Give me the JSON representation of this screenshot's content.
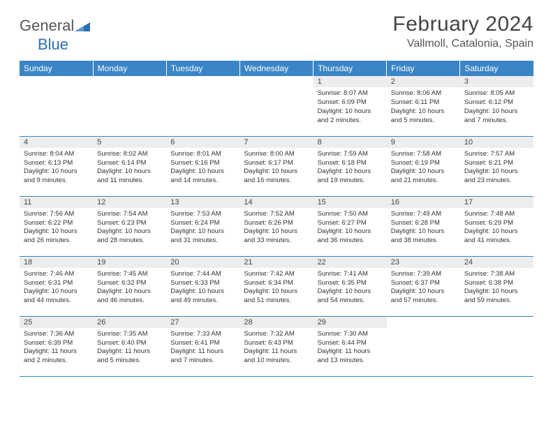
{
  "brand": {
    "part1": "General",
    "part2": "Blue"
  },
  "header": {
    "title": "February 2024",
    "location": "Vallmoll, Catalonia, Spain"
  },
  "colors": {
    "header_bg": "#3a85c6",
    "header_fg": "#ffffff",
    "daybar_bg": "#ededed",
    "row_border": "#3a85c6",
    "brand_gray": "#6b6b6b",
    "brand_blue": "#2f6fad"
  },
  "day_labels": [
    "Sunday",
    "Monday",
    "Tuesday",
    "Wednesday",
    "Thursday",
    "Friday",
    "Saturday"
  ],
  "weeks": [
    [
      null,
      null,
      null,
      null,
      {
        "n": "1",
        "sr": "Sunrise: 8:07 AM",
        "ss": "Sunset: 6:09 PM",
        "dl": "Daylight: 10 hours and 2 minutes."
      },
      {
        "n": "2",
        "sr": "Sunrise: 8:06 AM",
        "ss": "Sunset: 6:11 PM",
        "dl": "Daylight: 10 hours and 5 minutes."
      },
      {
        "n": "3",
        "sr": "Sunrise: 8:05 AM",
        "ss": "Sunset: 6:12 PM",
        "dl": "Daylight: 10 hours and 7 minutes."
      }
    ],
    [
      {
        "n": "4",
        "sr": "Sunrise: 8:04 AM",
        "ss": "Sunset: 6:13 PM",
        "dl": "Daylight: 10 hours and 9 minutes."
      },
      {
        "n": "5",
        "sr": "Sunrise: 8:02 AM",
        "ss": "Sunset: 6:14 PM",
        "dl": "Daylight: 10 hours and 11 minutes."
      },
      {
        "n": "6",
        "sr": "Sunrise: 8:01 AM",
        "ss": "Sunset: 6:16 PM",
        "dl": "Daylight: 10 hours and 14 minutes."
      },
      {
        "n": "7",
        "sr": "Sunrise: 8:00 AM",
        "ss": "Sunset: 6:17 PM",
        "dl": "Daylight: 10 hours and 16 minutes."
      },
      {
        "n": "8",
        "sr": "Sunrise: 7:59 AM",
        "ss": "Sunset: 6:18 PM",
        "dl": "Daylight: 10 hours and 19 minutes."
      },
      {
        "n": "9",
        "sr": "Sunrise: 7:58 AM",
        "ss": "Sunset: 6:19 PM",
        "dl": "Daylight: 10 hours and 21 minutes."
      },
      {
        "n": "10",
        "sr": "Sunrise: 7:57 AM",
        "ss": "Sunset: 6:21 PM",
        "dl": "Daylight: 10 hours and 23 minutes."
      }
    ],
    [
      {
        "n": "11",
        "sr": "Sunrise: 7:56 AM",
        "ss": "Sunset: 6:22 PM",
        "dl": "Daylight: 10 hours and 26 minutes."
      },
      {
        "n": "12",
        "sr": "Sunrise: 7:54 AM",
        "ss": "Sunset: 6:23 PM",
        "dl": "Daylight: 10 hours and 28 minutes."
      },
      {
        "n": "13",
        "sr": "Sunrise: 7:53 AM",
        "ss": "Sunset: 6:24 PM",
        "dl": "Daylight: 10 hours and 31 minutes."
      },
      {
        "n": "14",
        "sr": "Sunrise: 7:52 AM",
        "ss": "Sunset: 6:26 PM",
        "dl": "Daylight: 10 hours and 33 minutes."
      },
      {
        "n": "15",
        "sr": "Sunrise: 7:50 AM",
        "ss": "Sunset: 6:27 PM",
        "dl": "Daylight: 10 hours and 36 minutes."
      },
      {
        "n": "16",
        "sr": "Sunrise: 7:49 AM",
        "ss": "Sunset: 6:28 PM",
        "dl": "Daylight: 10 hours and 38 minutes."
      },
      {
        "n": "17",
        "sr": "Sunrise: 7:48 AM",
        "ss": "Sunset: 6:29 PM",
        "dl": "Daylight: 10 hours and 41 minutes."
      }
    ],
    [
      {
        "n": "18",
        "sr": "Sunrise: 7:46 AM",
        "ss": "Sunset: 6:31 PM",
        "dl": "Daylight: 10 hours and 44 minutes."
      },
      {
        "n": "19",
        "sr": "Sunrise: 7:45 AM",
        "ss": "Sunset: 6:32 PM",
        "dl": "Daylight: 10 hours and 46 minutes."
      },
      {
        "n": "20",
        "sr": "Sunrise: 7:44 AM",
        "ss": "Sunset: 6:33 PM",
        "dl": "Daylight: 10 hours and 49 minutes."
      },
      {
        "n": "21",
        "sr": "Sunrise: 7:42 AM",
        "ss": "Sunset: 6:34 PM",
        "dl": "Daylight: 10 hours and 51 minutes."
      },
      {
        "n": "22",
        "sr": "Sunrise: 7:41 AM",
        "ss": "Sunset: 6:35 PM",
        "dl": "Daylight: 10 hours and 54 minutes."
      },
      {
        "n": "23",
        "sr": "Sunrise: 7:39 AM",
        "ss": "Sunset: 6:37 PM",
        "dl": "Daylight: 10 hours and 57 minutes."
      },
      {
        "n": "24",
        "sr": "Sunrise: 7:38 AM",
        "ss": "Sunset: 6:38 PM",
        "dl": "Daylight: 10 hours and 59 minutes."
      }
    ],
    [
      {
        "n": "25",
        "sr": "Sunrise: 7:36 AM",
        "ss": "Sunset: 6:39 PM",
        "dl": "Daylight: 11 hours and 2 minutes."
      },
      {
        "n": "26",
        "sr": "Sunrise: 7:35 AM",
        "ss": "Sunset: 6:40 PM",
        "dl": "Daylight: 11 hours and 5 minutes."
      },
      {
        "n": "27",
        "sr": "Sunrise: 7:33 AM",
        "ss": "Sunset: 6:41 PM",
        "dl": "Daylight: 11 hours and 7 minutes."
      },
      {
        "n": "28",
        "sr": "Sunrise: 7:32 AM",
        "ss": "Sunset: 6:43 PM",
        "dl": "Daylight: 11 hours and 10 minutes."
      },
      {
        "n": "29",
        "sr": "Sunrise: 7:30 AM",
        "ss": "Sunset: 6:44 PM",
        "dl": "Daylight: 11 hours and 13 minutes."
      },
      null,
      null
    ]
  ]
}
